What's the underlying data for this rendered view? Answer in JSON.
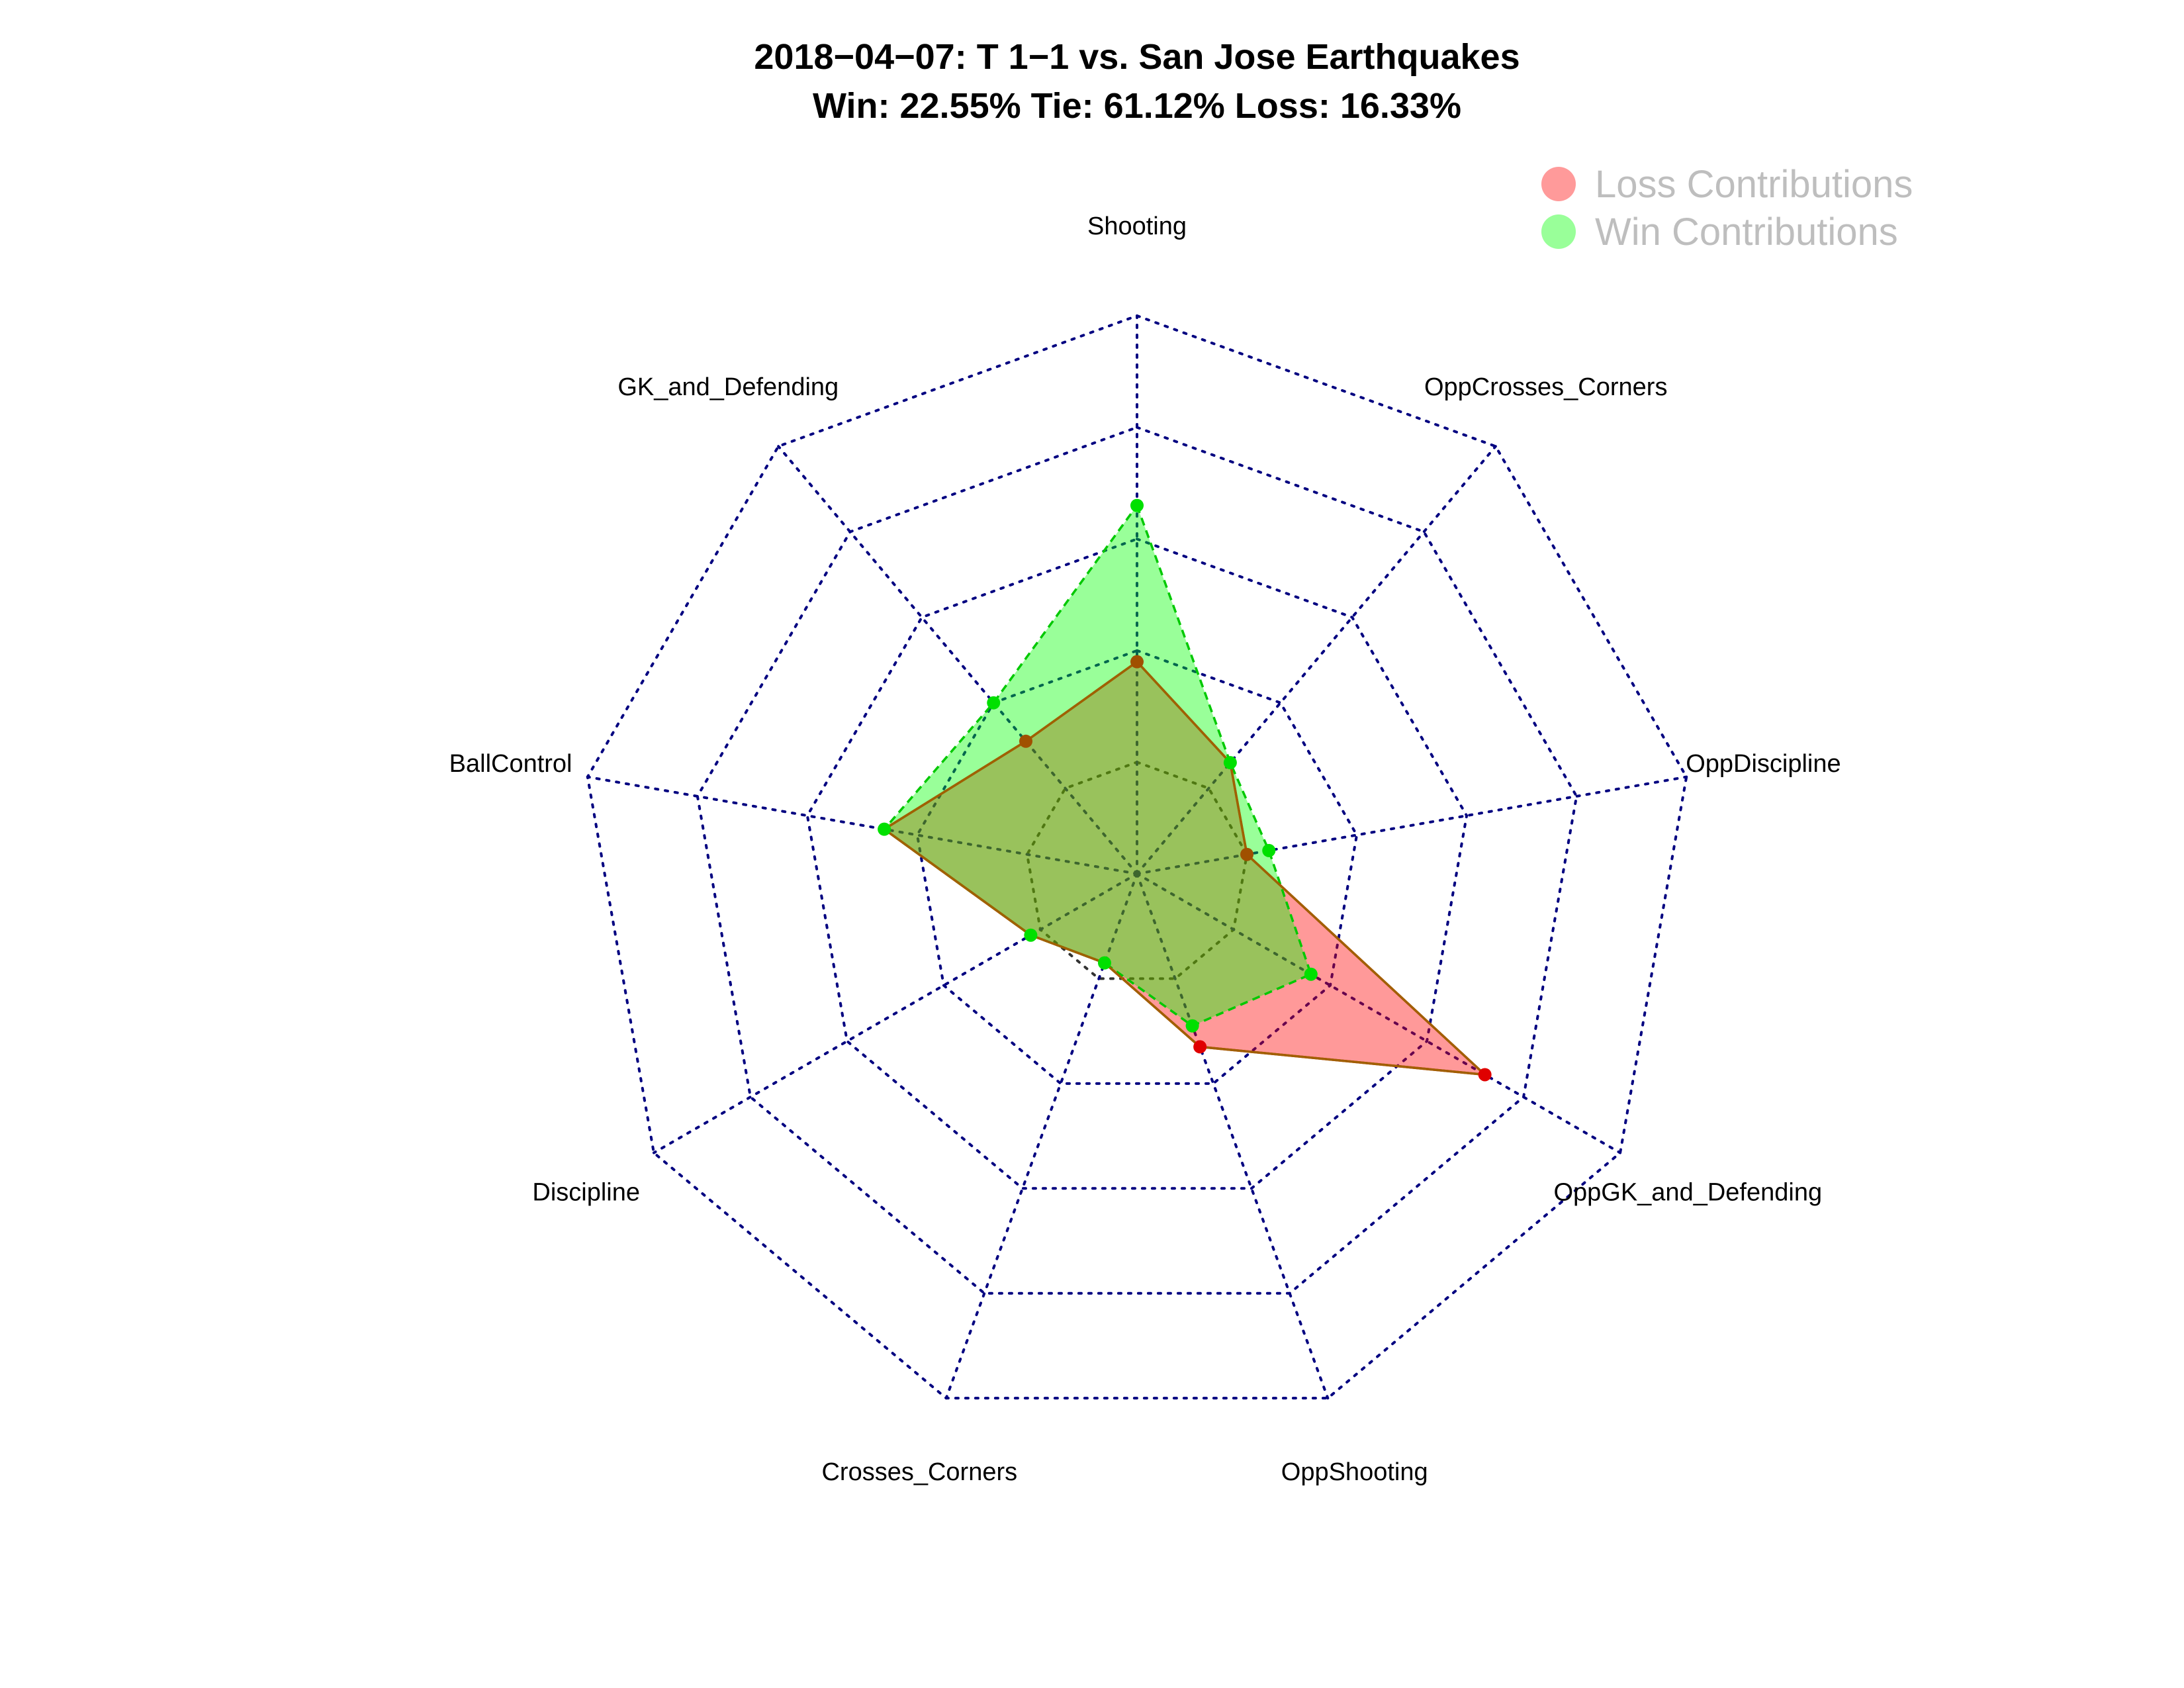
{
  "chart_data": {
    "type": "radar",
    "title": "2018−04−07:  T 1−1   vs. San Jose Earthquakes",
    "subtitle": "Win: 22.55% Tie: 61.12% Loss: 16.33%",
    "axes": [
      "Shooting",
      "OppCrosses_Corners",
      "OppDiscipline",
      "OppGK_and_Defending",
      "OppShooting",
      "Crosses_Corners",
      "Discipline",
      "BallControl",
      "GK_and_Defending"
    ],
    "rlim": [
      0,
      1
    ],
    "rings": 5,
    "series": [
      {
        "name": "Loss Contributions",
        "color": "#ff0000",
        "values": [
          0.38,
          0.26,
          0.2,
          0.72,
          0.33,
          0.17,
          0.22,
          0.46,
          0.31
        ]
      },
      {
        "name": "Win Contributions",
        "color": "#00ff00",
        "values": [
          0.66,
          0.26,
          0.24,
          0.36,
          0.29,
          0.17,
          0.22,
          0.46,
          0.4
        ]
      }
    ],
    "legend_position": "top-right",
    "grid": true
  },
  "colors": {
    "loss_fill": "#ff000066",
    "win_fill": "#00ff0066",
    "grid": "#000080",
    "legend_text": "#bebebe"
  }
}
